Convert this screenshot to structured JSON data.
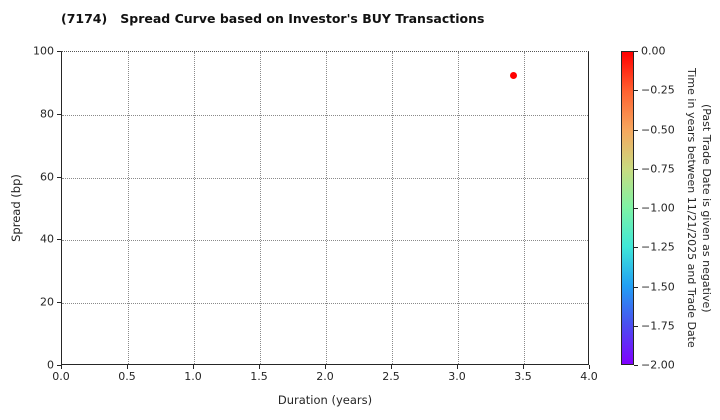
{
  "chart_data": {
    "type": "scatter",
    "title": "(7174)   Spread Curve based on Investor's BUY Transactions",
    "xlabel": "Duration (years)",
    "ylabel": "Spread (bp)",
    "xlim": [
      0.0,
      4.0
    ],
    "ylim": [
      0,
      100
    ],
    "x_ticks": [
      0.0,
      0.5,
      1.0,
      1.5,
      2.0,
      2.5,
      3.0,
      3.5,
      4.0
    ],
    "x_tick_labels": [
      "0.0",
      "0.5",
      "1.0",
      "1.5",
      "2.0",
      "2.5",
      "3.0",
      "3.5",
      "4.0"
    ],
    "y_ticks": [
      0,
      20,
      40,
      60,
      80,
      100
    ],
    "y_tick_labels": [
      "0",
      "20",
      "40",
      "60",
      "80",
      "100"
    ],
    "grid": true,
    "grid_style": "dotted",
    "points": [
      {
        "x": 3.42,
        "y": 92.4,
        "color_value": 0.0,
        "color": "#ff0000"
      }
    ],
    "colorbar": {
      "title_line1": "Time in years between 11/21/2025 and Trade Date",
      "title_line2": "(Past Trade Date is given as negative)",
      "vmax": 0.0,
      "vmin": -2.0,
      "colormap": "rainbow",
      "tick_labels": [
        "0.00",
        "−0.25",
        "−0.50",
        "−0.75",
        "−1.00",
        "−1.25",
        "−1.50",
        "−1.75",
        "−2.00"
      ],
      "gradient_stops": [
        {
          "pos": 0.0,
          "color": "#ff0000"
        },
        {
          "pos": 0.125,
          "color": "#ff6130"
        },
        {
          "pos": 0.25,
          "color": "#f6a75e"
        },
        {
          "pos": 0.375,
          "color": "#c9db80"
        },
        {
          "pos": 0.5,
          "color": "#7df3a5"
        },
        {
          "pos": 0.625,
          "color": "#3fe7d8"
        },
        {
          "pos": 0.75,
          "color": "#219ff4"
        },
        {
          "pos": 0.875,
          "color": "#4b4ef0"
        },
        {
          "pos": 1.0,
          "color": "#8000ff"
        }
      ]
    }
  }
}
